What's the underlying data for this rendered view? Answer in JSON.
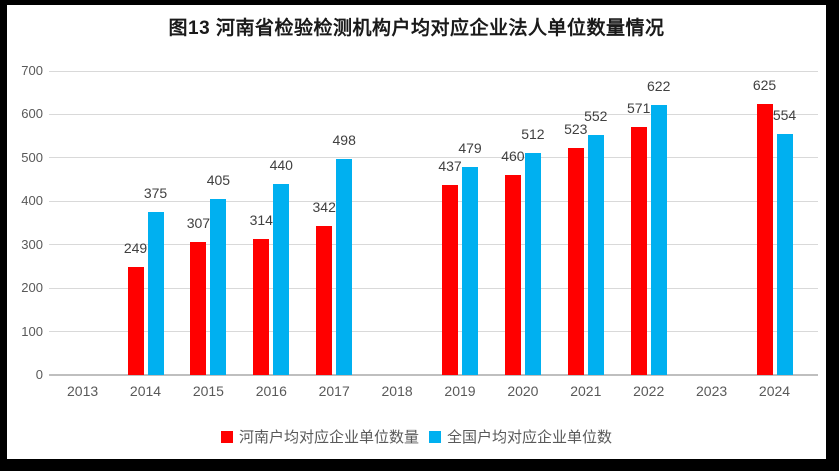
{
  "colors": {
    "frame": "#000000",
    "background": "#ffffff",
    "henan_series": "#ff0000",
    "national_series": "#00b0f0",
    "gridline": "#d9d9d9",
    "axis_line": "#bfbfbf",
    "axis_text": "#595959",
    "data_label_text": "#404040",
    "title_text": "#1a1a1a"
  },
  "chart_data": {
    "type": "bar",
    "title": "图13 河南省检验检测机构户均对应企业法人单位数量情况",
    "categories": [
      "2013",
      "2014",
      "2015",
      "2016",
      "2017",
      "2018",
      "2019",
      "2020",
      "2021",
      "2022",
      "2023",
      "2024"
    ],
    "series": [
      {
        "name": "河南户均对应企业单位数量",
        "color": "#ff0000",
        "values": [
          null,
          249,
          307,
          314,
          342,
          null,
          437,
          460,
          523,
          571,
          null,
          625
        ]
      },
      {
        "name": "全国户均对应企业单位数",
        "color": "#00b0f0",
        "values": [
          null,
          375,
          405,
          440,
          498,
          null,
          479,
          512,
          552,
          622,
          null,
          554
        ]
      }
    ],
    "ylim": [
      0,
      700
    ],
    "yticks": [
      0,
      100,
      200,
      300,
      400,
      500,
      600,
      700
    ],
    "grid": true,
    "legend_position": "bottom",
    "data_labels": true
  }
}
